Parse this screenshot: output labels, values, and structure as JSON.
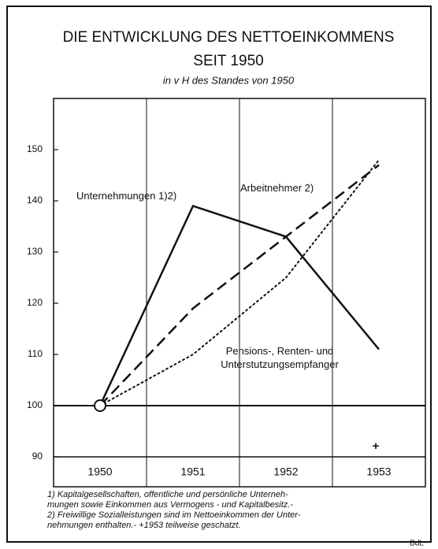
{
  "chart_data": {
    "type": "line",
    "title": "DIE ENTWICKLUNG DES NETTOEINKOMMENS",
    "title_line2": "SEIT 1950",
    "subtitle": "in v H des Standes von 1950",
    "categories": [
      "1950",
      "1951",
      "1952",
      "1953"
    ],
    "series": [
      {
        "name": "Unternehmungen 1)2)",
        "color": "#111111",
        "dash": "solid",
        "values": [
          100,
          139,
          133,
          111
        ]
      },
      {
        "name": "Arbeitnehmer 2)",
        "color": "#111111",
        "dash": "dashed",
        "values": [
          100,
          119,
          133,
          147
        ]
      },
      {
        "name": "Pensions-, Renten- und Unterstutzungsempfanger",
        "color": "#111111",
        "dash": "dotted",
        "values": [
          100,
          110,
          125,
          148
        ]
      }
    ],
    "ylim": [
      90,
      160
    ],
    "yticks": [
      90,
      100,
      110,
      120,
      130,
      140,
      150
    ],
    "baseline": 100,
    "grid": false,
    "annotation": "+",
    "footnotes": [
      "1) Kapitalgesellschaften, offentliche und persönliche Unterneh-",
      "mungen sowie Einkommen aus Vermogens - und Kapitalbesitz.-",
      "2) Freiwillige Sozialleistungen sind im Nettoeinkommen der Unter-",
      "nehmungen enthalten.- +1953 teilweise geschatzt."
    ],
    "source": "BdL"
  }
}
